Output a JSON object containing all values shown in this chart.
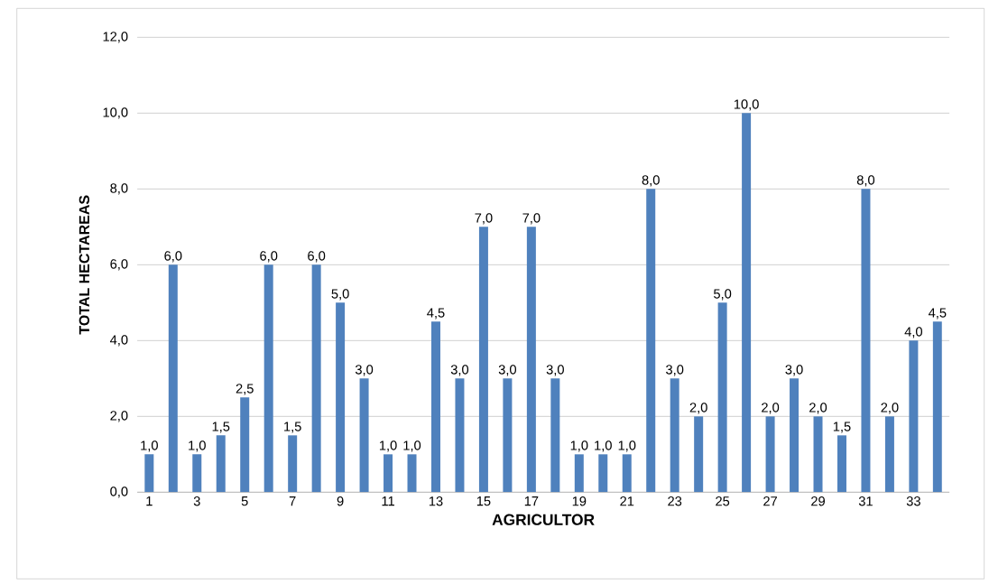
{
  "chart_data": {
    "type": "bar",
    "xlabel": "AGRICULTOR",
    "ylabel": "TOTAL HECTAREAS",
    "categories": [
      "1",
      null,
      "3",
      null,
      "5",
      null,
      "7",
      null,
      "9",
      null,
      "11",
      null,
      "13",
      null,
      "15",
      null,
      "17",
      null,
      "19",
      null,
      "21",
      null,
      "23",
      null,
      "25",
      null,
      "27",
      null,
      "29",
      null,
      "31",
      null,
      "33",
      null
    ],
    "values": [
      1.0,
      6.0,
      1.0,
      1.5,
      2.5,
      6.0,
      1.5,
      6.0,
      5.0,
      3.0,
      1.0,
      1.0,
      4.5,
      3.0,
      7.0,
      3.0,
      7.0,
      3.0,
      1.0,
      1.0,
      1.0,
      8.0,
      3.0,
      2.0,
      5.0,
      10.0,
      2.0,
      3.0,
      2.0,
      1.5,
      8.0,
      2.0,
      4.0,
      4.5
    ],
    "value_labels": [
      "1,0",
      "6,0",
      "1,0",
      "1,5",
      "2,5",
      "6,0",
      "1,5",
      "6,0",
      "5,0",
      "3,0",
      "1,0",
      "1,0",
      "4,5",
      "3,0",
      "7,0",
      "3,0",
      "7,0",
      "3,0",
      "1,0",
      "1,0",
      "1,0",
      "8,0",
      "3,0",
      "2,0",
      "5,0",
      "10,0",
      "2,0",
      "3,0",
      "2,0",
      "1,5",
      "8,0",
      "2,0",
      "4,0",
      "4,5"
    ],
    "color": "#4f81bd",
    "ylim": [
      0,
      12
    ],
    "yticks": [
      {
        "value": 0,
        "label": "0,0"
      },
      {
        "value": 2,
        "label": "2,0"
      },
      {
        "value": 4,
        "label": "4,0"
      },
      {
        "value": 6,
        "label": "6,0"
      },
      {
        "value": 8,
        "label": "8,0"
      },
      {
        "value": 10,
        "label": "10,0"
      },
      {
        "value": 12,
        "label": "12,0"
      }
    ],
    "grid": "y"
  }
}
